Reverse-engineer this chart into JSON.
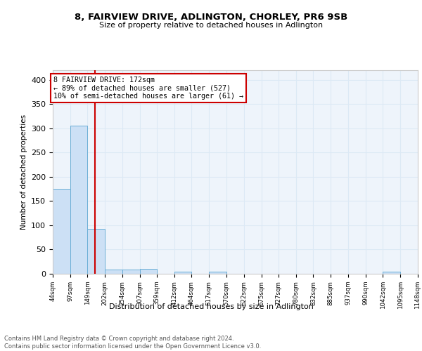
{
  "title": "8, FAIRVIEW DRIVE, ADLINGTON, CHORLEY, PR6 9SB",
  "subtitle": "Size of property relative to detached houses in Adlington",
  "xlabel": "Distribution of detached houses by size in Adlington",
  "ylabel": "Number of detached properties",
  "bar_edges": [
    44,
    97,
    149,
    202,
    254,
    307,
    359,
    412,
    464,
    517,
    570,
    622,
    675,
    727,
    780,
    832,
    885,
    937,
    990,
    1042,
    1095
  ],
  "bar_heights": [
    175,
    305,
    93,
    8,
    9,
    10,
    0,
    4,
    0,
    4,
    0,
    0,
    0,
    0,
    0,
    0,
    0,
    0,
    0,
    4,
    0
  ],
  "bar_color": "#cce0f5",
  "bar_edge_color": "#6aaed6",
  "grid_color": "#dce9f5",
  "property_line_x": 172,
  "property_line_color": "#cc0000",
  "annotation_line1": "8 FAIRVIEW DRIVE: 172sqm",
  "annotation_line2": "← 89% of detached houses are smaller (527)",
  "annotation_line3": "10% of semi-detached houses are larger (61) →",
  "annotation_box_color": "#ffffff",
  "annotation_box_edge": "#cc0000",
  "ylim": [
    0,
    420
  ],
  "yticks": [
    0,
    50,
    100,
    150,
    200,
    250,
    300,
    350,
    400
  ],
  "footer_text": "Contains HM Land Registry data © Crown copyright and database right 2024.\nContains public sector information licensed under the Open Government Licence v3.0.",
  "bg_color": "#eef4fb",
  "fig_bg_color": "#ffffff"
}
